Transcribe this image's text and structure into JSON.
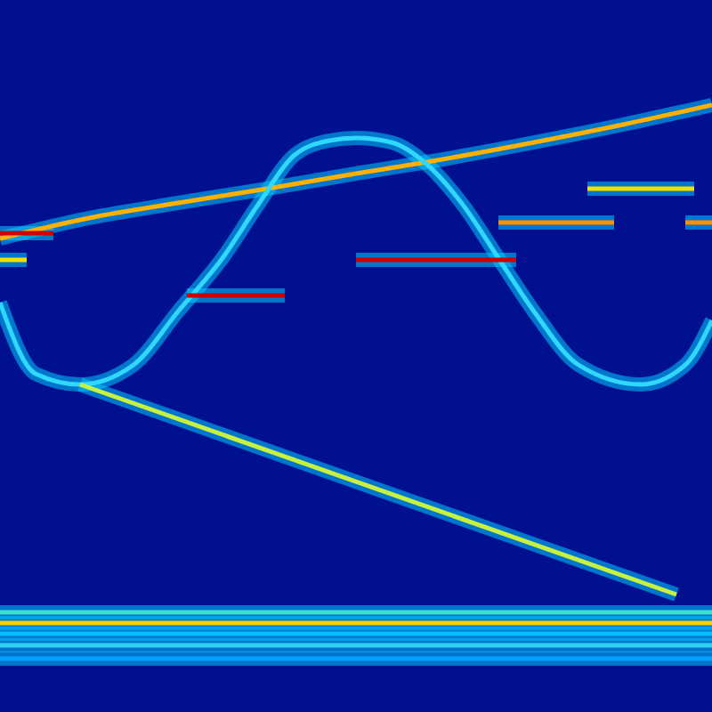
{
  "chart_data": {
    "type": "line",
    "xlim": [
      0,
      800
    ],
    "ylim": [
      0,
      800
    ],
    "tick_labels": false,
    "grid": false,
    "series": [
      {
        "color": "#ffb000",
        "x": [
          0,
          100,
          200,
          300,
          400,
          480,
          600,
          700,
          800
        ],
        "values": [
          532,
          555,
          572,
          588,
          605,
          618,
          640,
          660,
          682
        ]
      },
      {
        "color": "#30d8ff",
        "x": [
          0,
          40,
          90,
          150,
          200,
          250,
          290,
          330,
          370,
          400,
          440,
          480,
          520,
          560,
          600,
          650,
          720,
          770,
          800
        ],
        "values": [
          460,
          380,
          368,
          390,
          450,
          510,
          570,
          625,
          642,
          645,
          640,
          615,
          570,
          510,
          450,
          390,
          368,
          390,
          440
        ]
      },
      {
        "color": "#c8f040",
        "x": [
          90,
          760
        ],
        "values": [
          368,
          132
        ]
      },
      {
        "color": "#d00000",
        "x": [
          210,
          320
        ],
        "values": [
          468,
          468
        ]
      },
      {
        "color": "#d00000",
        "x": [
          400,
          580
        ],
        "values": [
          508,
          508
        ]
      },
      {
        "color": "#f0e000",
        "x": [
          660,
          780
        ],
        "values": [
          588,
          588
        ]
      },
      {
        "color": "#ff9000",
        "x": [
          560,
          690
        ],
        "values": [
          550,
          550
        ]
      },
      {
        "color": "#ff9000",
        "x": [
          770,
          800
        ],
        "values": [
          550,
          550
        ]
      },
      {
        "color": "#d00000",
        "x": [
          0,
          60
        ],
        "values": [
          538,
          538
        ]
      },
      {
        "color": "#f0e000",
        "x": [
          0,
          30
        ],
        "values": [
          508,
          508
        ]
      },
      {
        "color": "#40e0d0",
        "x": [
          0,
          800
        ],
        "values": [
          112,
          112
        ]
      },
      {
        "color": "#ffd000",
        "x": [
          0,
          800
        ],
        "values": [
          100,
          100
        ]
      },
      {
        "color": "#00c0ff",
        "x": [
          0,
          800
        ],
        "values": [
          88,
          88
        ]
      },
      {
        "color": "#30d0f0",
        "x": [
          0,
          800
        ],
        "values": [
          75,
          75
        ]
      },
      {
        "color": "#00a0ff",
        "x": [
          0,
          800
        ],
        "values": [
          60,
          60
        ]
      }
    ]
  }
}
